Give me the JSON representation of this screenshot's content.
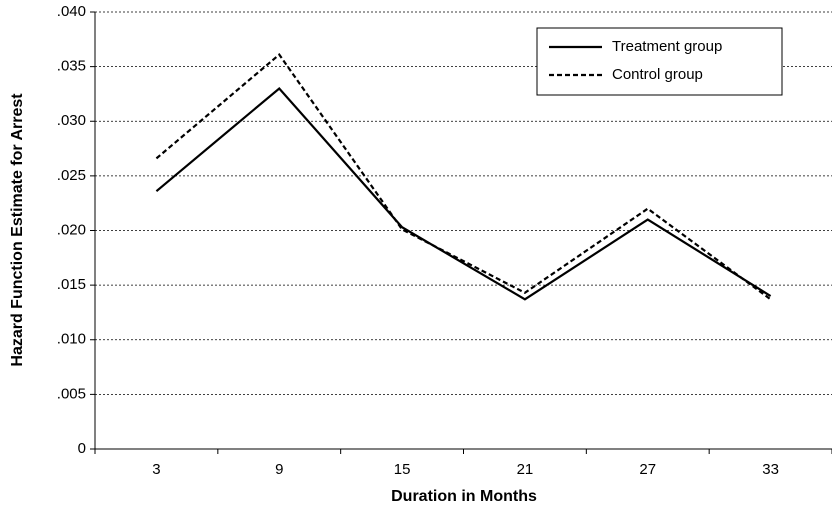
{
  "chart_data": {
    "type": "line",
    "x_label": "Duration in Months",
    "y_label": "Hazard Function Estimate for Arrest",
    "categories": [
      "3",
      "9",
      "15",
      "21",
      "27",
      "33"
    ],
    "series": [
      {
        "name": "Treatment group",
        "color": "#000000",
        "style": "solid",
        "values": [
          0.0236,
          0.033,
          0.0203,
          0.0137,
          0.021,
          0.014
        ]
      },
      {
        "name": "Control group",
        "color": "#000000",
        "style": "dashed",
        "values": [
          0.0266,
          0.0361,
          0.0201,
          0.0143,
          0.022,
          0.0137
        ]
      }
    ],
    "ylim": [
      0,
      0.04
    ],
    "yticks": [
      0,
      {
        "value": 0.005,
        "label": ".005"
      },
      {
        "value": 0.01,
        "label": ".010"
      },
      {
        "value": 0.015,
        "label": ".015"
      },
      {
        "value": 0.02,
        "label": ".020"
      },
      {
        "value": 0.025,
        "label": ".025"
      },
      {
        "value": 0.03,
        "label": ".030"
      },
      {
        "value": 0.035,
        "label": ".035"
      },
      {
        "value": 0.04,
        "label": ".040"
      }
    ],
    "grid": true,
    "legend": "upper right"
  }
}
